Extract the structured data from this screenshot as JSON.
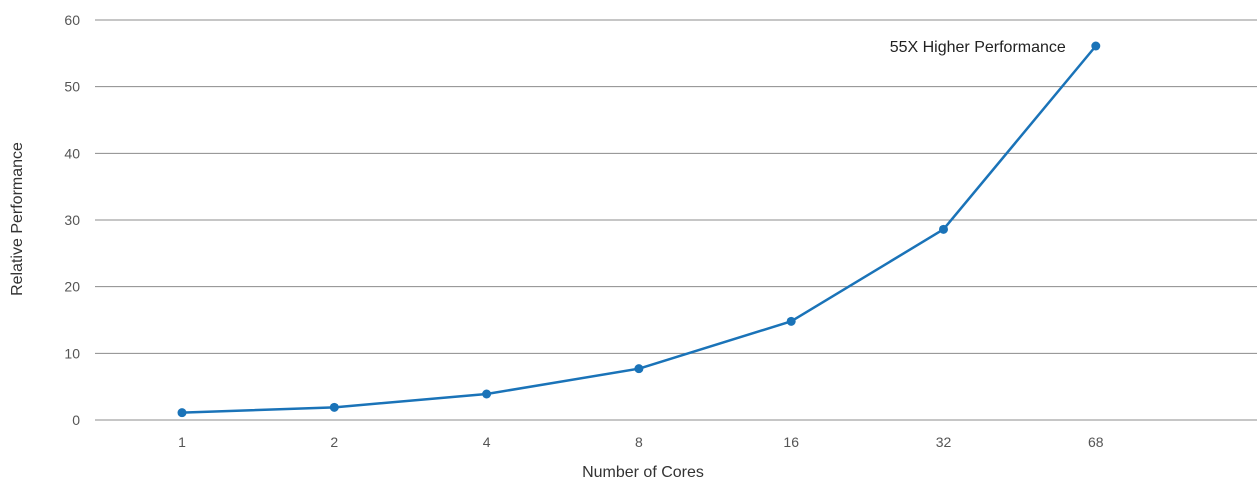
{
  "chart_data": {
    "type": "line",
    "title": "",
    "xlabel": "Number of Cores",
    "ylabel": "Relative Performance",
    "categories": [
      "1",
      "2",
      "4",
      "8",
      "16",
      "32",
      "68"
    ],
    "series": [
      {
        "values": [
          1.1,
          1.9,
          3.9,
          7.7,
          14.8,
          28.6,
          56.1
        ]
      }
    ],
    "ylim": [
      0,
      60
    ],
    "yticks": [
      0,
      10,
      20,
      30,
      40,
      50,
      60
    ],
    "grid": "horizontal",
    "legend": "none",
    "annotation": {
      "text": "55X Higher Performance",
      "category": "68"
    },
    "colors": {
      "line": "#1a73b8",
      "grid": "#8c8c8c",
      "tick_text": "#555555"
    }
  }
}
